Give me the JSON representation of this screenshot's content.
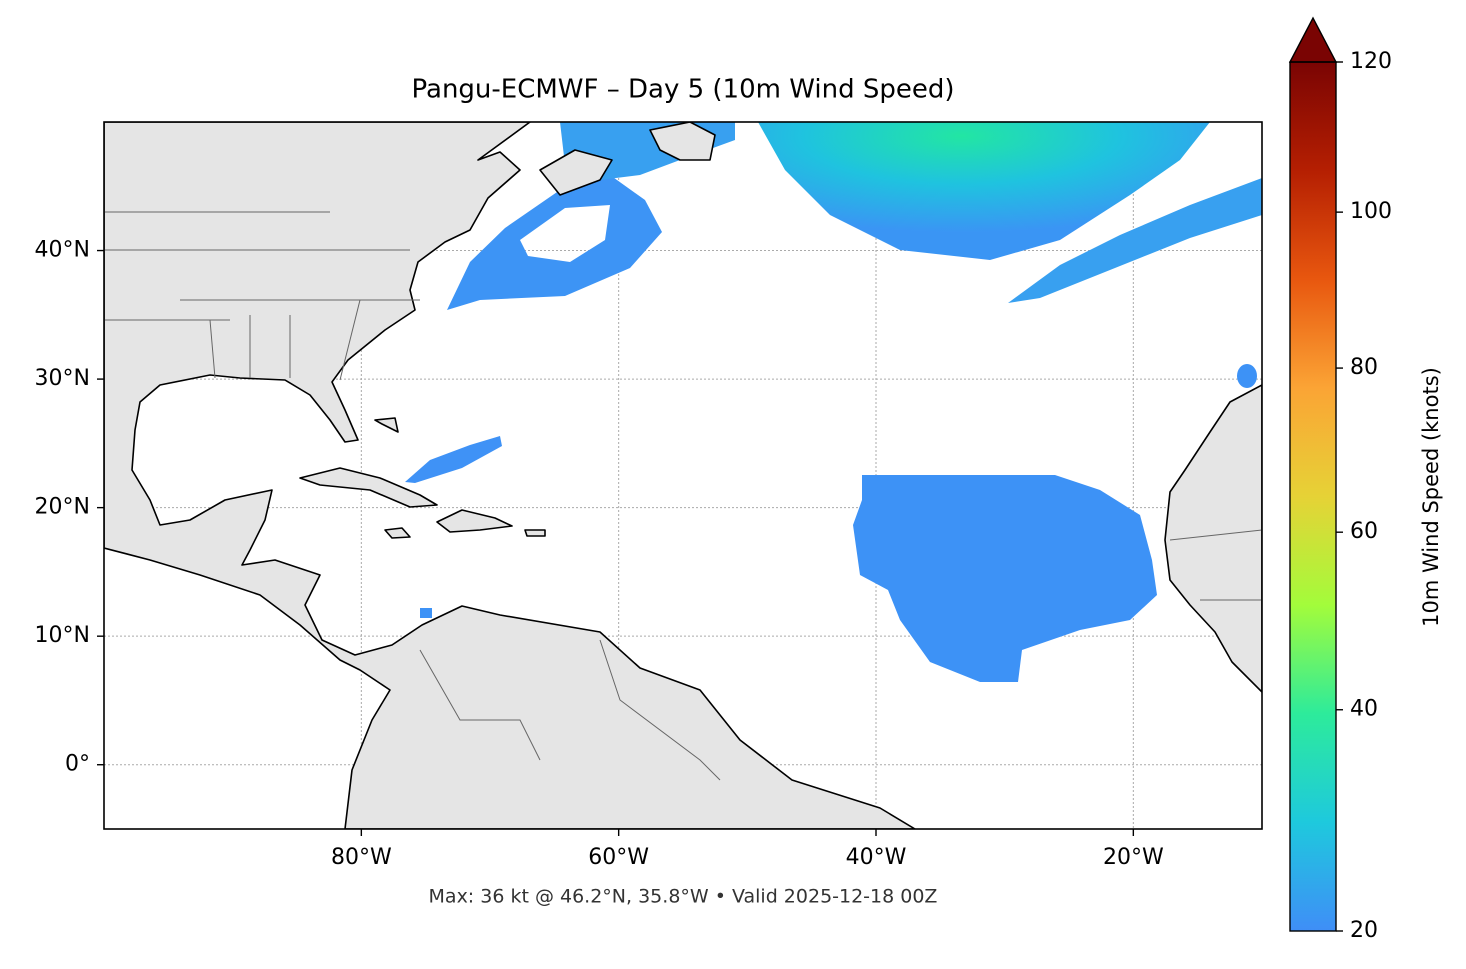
{
  "chart_data": {
    "type": "map",
    "title": "Pangu-ECMWF – Day 5 (10m Wind Speed)",
    "annotation": "Max: 36 kt @ 46.2°N, 35.8°W • Valid 2025-12-18 00Z",
    "xlim": [
      -100,
      -10
    ],
    "ylim": [
      -5,
      50
    ],
    "xticks": [
      {
        "value": -80,
        "label": "80°W"
      },
      {
        "value": -60,
        "label": "60°W"
      },
      {
        "value": -40,
        "label": "40°W"
      },
      {
        "value": -20,
        "label": "20°W"
      }
    ],
    "yticks": [
      {
        "value": 0,
        "label": "0°"
      },
      {
        "value": 10,
        "label": "10°N"
      },
      {
        "value": 20,
        "label": "20°N"
      },
      {
        "value": 30,
        "label": "30°N"
      },
      {
        "value": 40,
        "label": "40°N"
      }
    ],
    "grid": true,
    "colorbar": {
      "label": "10m Wind Speed (knots)",
      "lim": [
        20,
        120
      ],
      "ticks": [
        20,
        40,
        60,
        80,
        100,
        120
      ],
      "gamma": 0.85,
      "extend": "max",
      "colors": [
        "#3f8ef7",
        "#1ec9dd",
        "#2deb9b",
        "#a3fc3b",
        "#e6d236",
        "#fba435",
        "#e8570f",
        "#b51f02",
        "#7a0403"
      ]
    }
  }
}
